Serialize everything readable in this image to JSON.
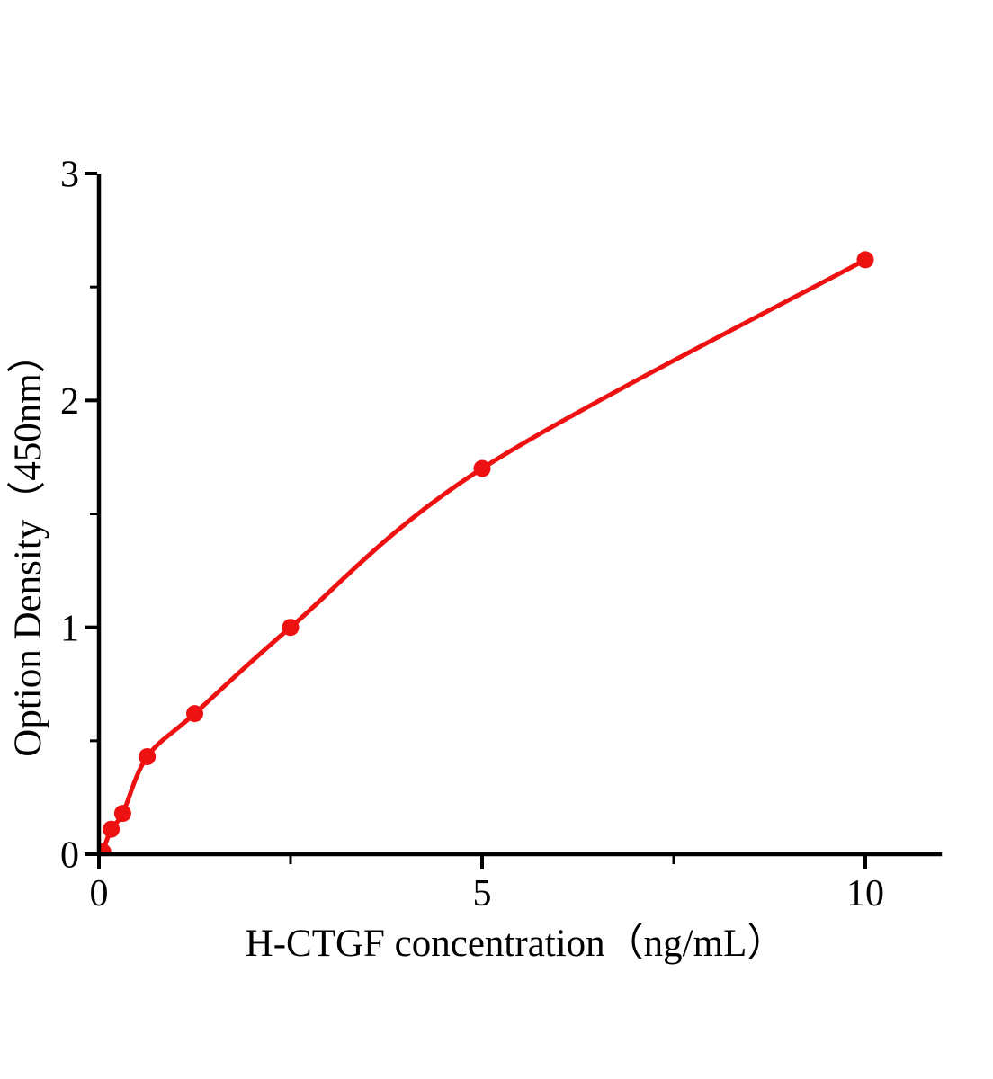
{
  "figure": {
    "background": "#ffffff",
    "description": "ELISA standard curve plot"
  },
  "chart_data": {
    "type": "scatter",
    "title": "",
    "xlabel": "H-CTGF concentration（ng/mL）",
    "ylabel": "Option Density（450nm）",
    "x": [
      0.05,
      0.16,
      0.31,
      0.63,
      1.25,
      2.5,
      5,
      10
    ],
    "y": [
      0.01,
      0.11,
      0.18,
      0.43,
      0.62,
      1.0,
      1.7,
      2.62
    ],
    "curve": "smooth fit through points",
    "marker": "filled-circle",
    "series_color": "#ee1111",
    "axis_color": "#000000",
    "background_color": "#ffffff",
    "xlim": [
      0,
      11
    ],
    "ylim": [
      0,
      3
    ],
    "x_major_ticks": [
      0,
      5,
      10
    ],
    "x_major_tick_labels": [
      "0",
      "5",
      "10"
    ],
    "x_minor_ticks": [
      2.5,
      7.5
    ],
    "y_major_ticks": [
      0,
      1,
      2,
      3
    ],
    "y_major_tick_labels": [
      "0",
      "1",
      "2",
      "3"
    ],
    "y_minor_ticks": [
      0.5,
      1.5,
      2.5
    ],
    "grid": false,
    "legend": "none"
  }
}
